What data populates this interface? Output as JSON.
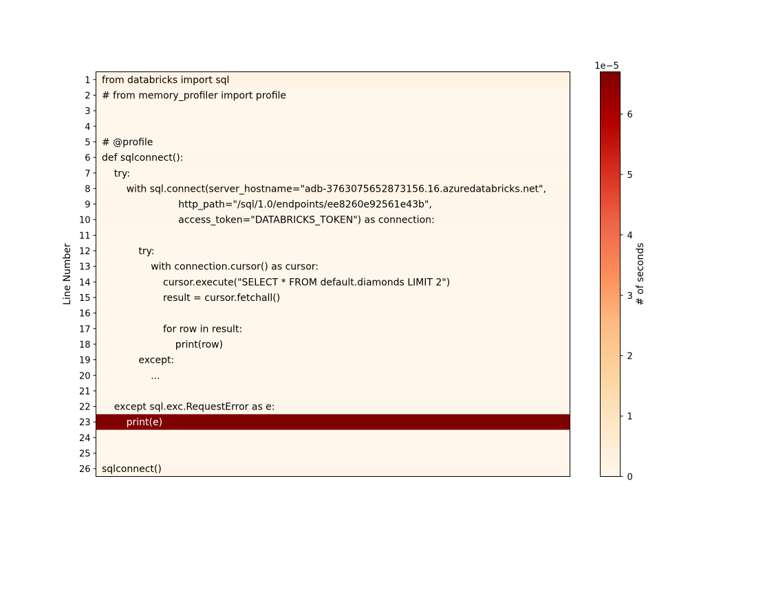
{
  "chart_data": {
    "type": "heatmap",
    "title": "",
    "xlabel": "",
    "ylabel": "Line Number",
    "rows": [
      {
        "line": 1,
        "code": "from databricks import sql",
        "seconds": 2.05e-06
      },
      {
        "line": 2,
        "code": "# from memory_profiler import profile",
        "seconds": 1e-07
      },
      {
        "line": 3,
        "code": "",
        "seconds": 1e-07
      },
      {
        "line": 4,
        "code": "",
        "seconds": 1e-07
      },
      {
        "line": 5,
        "code": "# @profile",
        "seconds": 1e-07
      },
      {
        "line": 6,
        "code": "def sqlconnect():",
        "seconds": 3e-07
      },
      {
        "line": 7,
        "code": "    try:",
        "seconds": 1e-07
      },
      {
        "line": 8,
        "code": "        with sql.connect(server_hostname=\"adb-3763075652873156.16.azuredatabricks.net\",",
        "seconds": 1e-06
      },
      {
        "line": 9,
        "code": "                         http_path=\"/sql/1.0/endpoints/ee8260e92561e43b\",",
        "seconds": 3e-07
      },
      {
        "line": 10,
        "code": "                         access_token=\"DATABRICKS_TOKEN\") as connection:",
        "seconds": 3e-07
      },
      {
        "line": 11,
        "code": "",
        "seconds": 1e-07
      },
      {
        "line": 12,
        "code": "            try:",
        "seconds": 1e-07
      },
      {
        "line": 13,
        "code": "                with connection.cursor() as cursor:",
        "seconds": 1e-07
      },
      {
        "line": 14,
        "code": "                    cursor.execute(\"SELECT * FROM default.diamonds LIMIT 2\")",
        "seconds": 1e-07
      },
      {
        "line": 15,
        "code": "                    result = cursor.fetchall()",
        "seconds": 1e-07
      },
      {
        "line": 16,
        "code": "",
        "seconds": 1e-07
      },
      {
        "line": 17,
        "code": "                    for row in result:",
        "seconds": 1e-07
      },
      {
        "line": 18,
        "code": "                        print(row)",
        "seconds": 1e-07
      },
      {
        "line": 19,
        "code": "            except:",
        "seconds": 1e-07
      },
      {
        "line": 20,
        "code": "                ...",
        "seconds": 1e-07
      },
      {
        "line": 21,
        "code": "",
        "seconds": 1e-07
      },
      {
        "line": 22,
        "code": "    except sql.exc.RequestError as e:",
        "seconds": 3e-07
      },
      {
        "line": 23,
        "code": "        print(e)",
        "seconds": 6.7e-05
      },
      {
        "line": 24,
        "code": "",
        "seconds": 1e-07
      },
      {
        "line": 25,
        "code": "",
        "seconds": 1e-07
      },
      {
        "line": 26,
        "code": "sqlconnect()",
        "seconds": 7e-07
      }
    ],
    "colorbar": {
      "label": "# of seconds",
      "multiplier": "1e−5",
      "ticks": [
        0,
        1,
        2,
        3,
        4,
        5,
        6
      ],
      "range": [
        0,
        6.7e-05
      ],
      "colormap": "OrRd"
    },
    "grid": false,
    "legend": "none"
  }
}
